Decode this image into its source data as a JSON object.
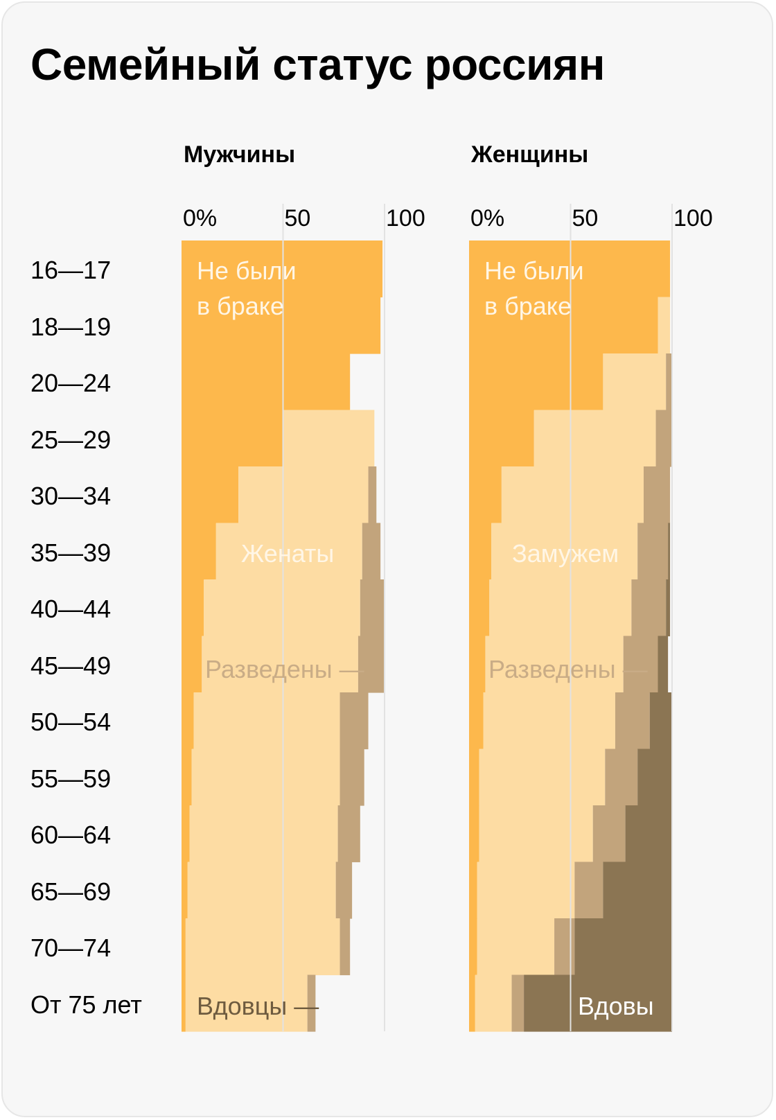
{
  "title": "Семейный статус россиян",
  "colors": {
    "never_married": "#fdb84c",
    "married": "#fddca3",
    "divorced": "#c2a47c",
    "widowed": "#8b7553",
    "label_light": "#fff6e6",
    "label_divorced": "#c9ac86",
    "label_widowed_men": "#6e5b3f",
    "label_widowed_women": "#ffffff"
  },
  "age_groups": [
    "16—17",
    "18—19",
    "20—24",
    "25—29",
    "30—34",
    "35—39",
    "40—44",
    "45—49",
    "50—54",
    "55—59",
    "60—64",
    "65—69",
    "70—74",
    "От 75 лет"
  ],
  "chart_data": [
    {
      "type": "bar",
      "stacked": true,
      "orientation": "horizontal",
      "title": "Мужчины",
      "categories": [
        "16—17",
        "18—19",
        "20—24",
        "25—29",
        "30—34",
        "35—39",
        "40—44",
        "45—49",
        "50—54",
        "55—59",
        "60—64",
        "65—69",
        "70—74",
        "От 75 лет"
      ],
      "xlim": [
        0,
        100
      ],
      "xticks": [
        "0%",
        "50",
        "100"
      ],
      "series": [
        {
          "name": "Не были в браке",
          "values": [
            99,
            98,
            83,
            50,
            28,
            17,
            11,
            10,
            6,
            5,
            4,
            3,
            2,
            2
          ]
        },
        {
          "name": "Женаты",
          "values": [
            0,
            0,
            0,
            45,
            64,
            72,
            77,
            77,
            72,
            73,
            73,
            73,
            76,
            60
          ]
        },
        {
          "name": "Разведены",
          "values": [
            0,
            0,
            0,
            0,
            4,
            9,
            12,
            13,
            14,
            12,
            11,
            8,
            5,
            4
          ]
        },
        {
          "name": "Вдовцы",
          "values": [
            0,
            0,
            0,
            0,
            0,
            0,
            0,
            0,
            0,
            0,
            0,
            0,
            0,
            0
          ]
        }
      ],
      "annotations": {
        "never_married": "Не были",
        "never_married_2": "в браке",
        "married": "Женаты",
        "divorced": "Разведены —",
        "widowed": "Вдовцы —"
      }
    },
    {
      "type": "bar",
      "stacked": true,
      "orientation": "horizontal",
      "title": "Женщины",
      "categories": [
        "16—17",
        "18—19",
        "20—24",
        "25—29",
        "30—34",
        "35—39",
        "40—44",
        "45—49",
        "50—54",
        "55—59",
        "60—64",
        "65—69",
        "70—74",
        "От 75 лет"
      ],
      "xlim": [
        0,
        100
      ],
      "xticks": [
        "0%",
        "50",
        "100"
      ],
      "series": [
        {
          "name": "Не были в браке",
          "values": [
            99,
            93,
            66,
            32,
            16,
            11,
            10,
            8,
            7,
            5,
            5,
            4,
            4,
            3
          ]
        },
        {
          "name": "Замужем",
          "values": [
            0,
            6,
            31,
            60,
            70,
            72,
            70,
            68,
            65,
            62,
            56,
            48,
            38,
            18
          ]
        },
        {
          "name": "Разведены",
          "values": [
            0,
            0,
            3,
            8,
            13,
            15,
            17,
            17,
            17,
            16,
            16,
            14,
            10,
            6
          ]
        },
        {
          "name": "Вдовы",
          "values": [
            0,
            0,
            0,
            0,
            0,
            1,
            2,
            5,
            11,
            17,
            23,
            34,
            48,
            73
          ]
        }
      ],
      "annotations": {
        "never_married": "Не были",
        "never_married_2": "в браке",
        "married": "Замужем",
        "divorced": "Разведены —",
        "widowed": "Вдовы"
      }
    }
  ]
}
